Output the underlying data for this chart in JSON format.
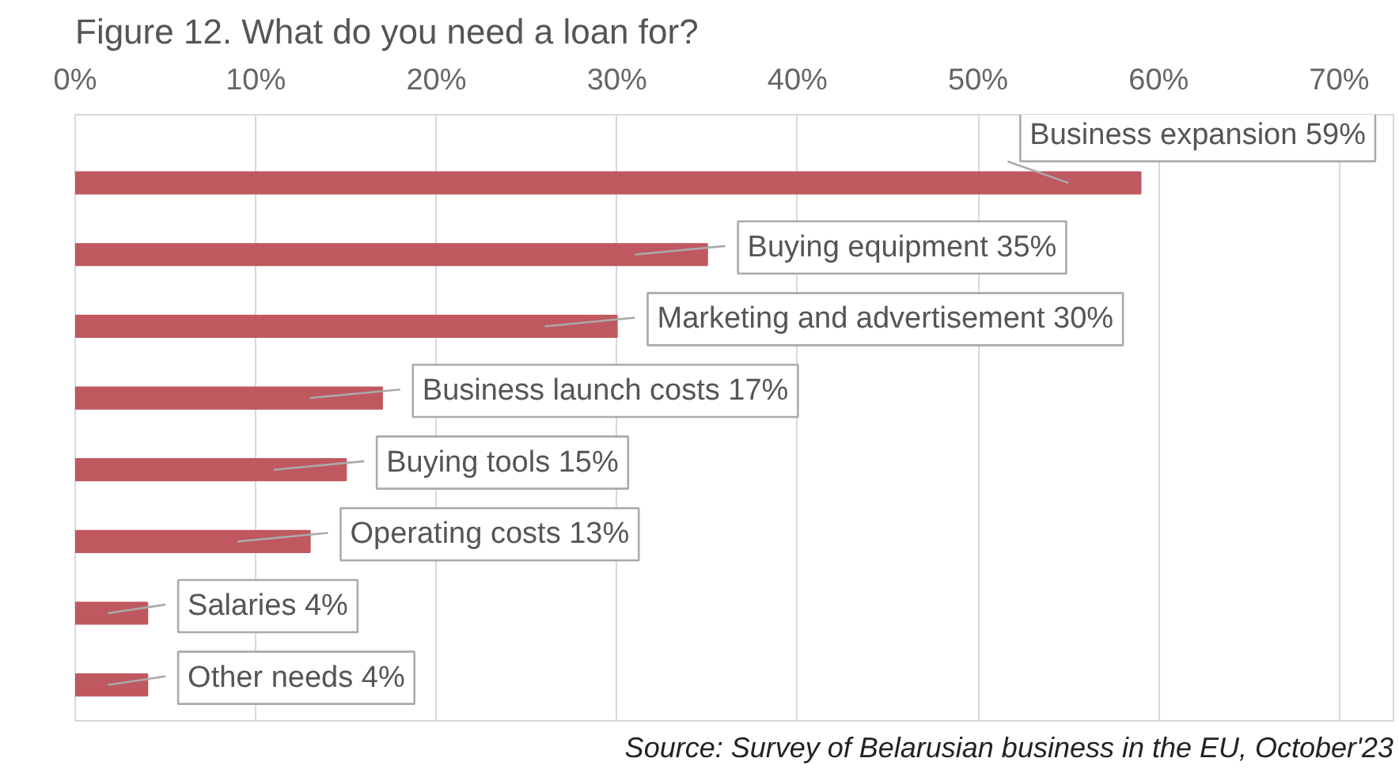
{
  "chart_data": {
    "type": "bar",
    "orientation": "horizontal",
    "title": "Figure 12. What do you need a loan for?",
    "categories": [
      "Business expansion",
      "Buying equipment",
      "Marketing and advertisement",
      "Business launch costs",
      "Buying tools",
      "Operating costs",
      "Salaries",
      "Other needs"
    ],
    "values": [
      59,
      35,
      30,
      17,
      15,
      13,
      4,
      4
    ],
    "value_labels": [
      "59%",
      "35%",
      "30%",
      "17%",
      "15%",
      "13%",
      "4%",
      "4%"
    ],
    "color": "#c0585f",
    "xlim": [
      0,
      73
    ],
    "xticks": [
      {
        "value": 0,
        "label": "0%"
      },
      {
        "value": 10,
        "label": "10%"
      },
      {
        "value": 20,
        "label": "20%"
      },
      {
        "value": 30,
        "label": "30%"
      },
      {
        "value": 40,
        "label": "40%"
      },
      {
        "value": 50,
        "label": "50%"
      },
      {
        "value": 60,
        "label": "60%"
      },
      {
        "value": 70,
        "label": "70%"
      }
    ],
    "grid": "x",
    "tick_labels": "x",
    "annotations": [
      "Source: Survey of Belarusian business in the EU, October'23"
    ]
  }
}
